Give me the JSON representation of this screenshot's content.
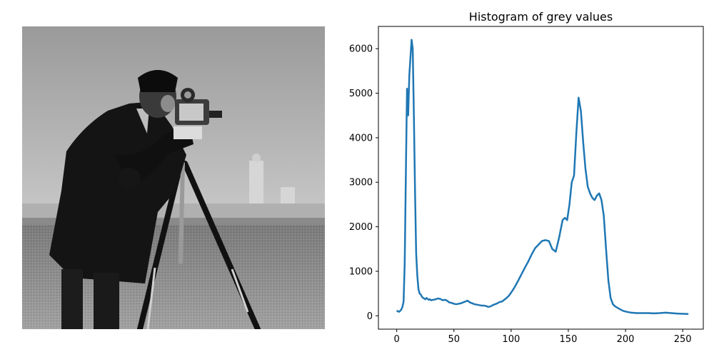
{
  "figure": {
    "left_image": {
      "description_key": "cameraman-photograph"
    }
  },
  "chart_data": {
    "type": "line",
    "title": "Histogram of grey values",
    "xlabel": "",
    "ylabel": "",
    "xlim": [
      -16,
      268
    ],
    "ylim": [
      -300,
      6500
    ],
    "xticks": [
      0,
      50,
      100,
      150,
      200,
      250
    ],
    "yticks": [
      0,
      1000,
      2000,
      3000,
      4000,
      5000,
      6000
    ],
    "grid": false,
    "legend": "none",
    "line_color": "#1f77b4",
    "series": [
      {
        "x": [
          0,
          1,
          2,
          3,
          4,
          5,
          6,
          7,
          8,
          9,
          10,
          11,
          12,
          13,
          14,
          15,
          16,
          17,
          18,
          19,
          20,
          21,
          22,
          23,
          24,
          25,
          26,
          27,
          28,
          29,
          30,
          32,
          34,
          36,
          38,
          40,
          42,
          44,
          46,
          48,
          50,
          52,
          54,
          56,
          58,
          60,
          62,
          64,
          66,
          68,
          70,
          72,
          74,
          76,
          78,
          80,
          82,
          84,
          86,
          88,
          90,
          92,
          94,
          96,
          98,
          100,
          103,
          106,
          109,
          112,
          115,
          118,
          121,
          124,
          127,
          130,
          133,
          136,
          139,
          142,
          145,
          147,
          149,
          151,
          153,
          155,
          157,
          159,
          161,
          163,
          165,
          167,
          169,
          171,
          173,
          175,
          177,
          179,
          181,
          183,
          185,
          187,
          189,
          191,
          193,
          195,
          198,
          201,
          205,
          210,
          215,
          220,
          225,
          230,
          235,
          240,
          245,
          250,
          255
        ],
        "y": [
          120,
          100,
          90,
          110,
          140,
          200,
          320,
          1200,
          3200,
          5100,
          4500,
          5400,
          5800,
          6200,
          6000,
          4500,
          2800,
          1400,
          900,
          600,
          500,
          480,
          430,
          400,
          390,
          370,
          400,
          380,
          360,
          370,
          350,
          360,
          370,
          390,
          380,
          350,
          360,
          340,
          300,
          290,
          270,
          260,
          270,
          280,
          300,
          320,
          340,
          300,
          280,
          260,
          250,
          240,
          230,
          230,
          220,
          200,
          210,
          240,
          260,
          280,
          310,
          320,
          360,
          400,
          450,
          520,
          640,
          780,
          930,
          1080,
          1220,
          1380,
          1520,
          1600,
          1680,
          1700,
          1680,
          1500,
          1440,
          1760,
          2150,
          2200,
          2150,
          2500,
          3000,
          3150,
          4100,
          4900,
          4600,
          3900,
          3300,
          2900,
          2750,
          2650,
          2600,
          2700,
          2750,
          2600,
          2250,
          1500,
          800,
          400,
          260,
          210,
          180,
          150,
          110,
          90,
          70,
          60,
          60,
          60,
          55,
          60,
          70,
          60,
          50,
          45,
          40
        ]
      }
    ]
  }
}
